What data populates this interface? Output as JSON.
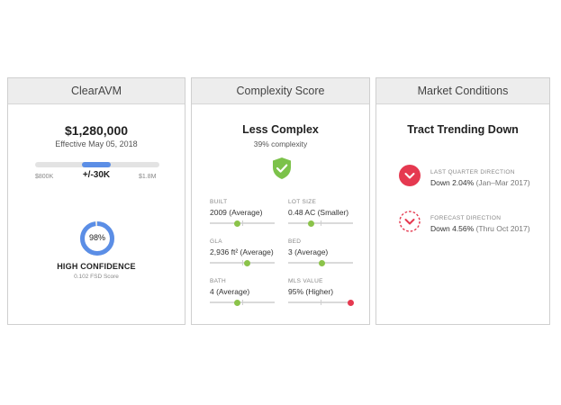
{
  "clearavm": {
    "title": "ClearAVM",
    "price": "$1,280,000",
    "effective": "Effective May 05, 2018",
    "range_low": "$800K",
    "range_high": "$1.8M",
    "range_pm": "+/-30K",
    "confidence_pct": "98%",
    "confidence_value": 0.98,
    "confidence_label": "HIGH CONFIDENCE",
    "fsd_score": "0.102 FSD Score",
    "accent_color": "#5b8ee6"
  },
  "complexity": {
    "title": "Complexity Score",
    "heading": "Less Complex",
    "subheading": "39% complexity",
    "icon": "shield-check-icon",
    "metrics": [
      {
        "label": "BUILT",
        "value": "2009 (Average)",
        "level": 0.43,
        "color": "#8bc34a"
      },
      {
        "label": "LOT SIZE",
        "value": "0.48 AC (Smaller)",
        "level": 0.36,
        "color": "#8bc34a"
      },
      {
        "label": "GLA",
        "value": "2,936 ft² (Average)",
        "level": 0.57,
        "color": "#8bc34a"
      },
      {
        "label": "BED",
        "value": "3 (Average)",
        "level": 0.52,
        "color": "#8bc34a"
      },
      {
        "label": "BATH",
        "value": "4 (Average)",
        "level": 0.42,
        "color": "#8bc34a"
      },
      {
        "label": "MLS VALUE",
        "value": "95% (Higher)",
        "level": 0.97,
        "color": "#e53950"
      }
    ]
  },
  "market": {
    "title": "Market Conditions",
    "heading": "Tract Trending Down",
    "last_quarter": {
      "label": "LAST QUARTER DIRECTION",
      "value": "Down 2.04%",
      "period": "(Jan–Mar 2017)",
      "icon": "chevron-down-circle-icon"
    },
    "forecast": {
      "label": "FORECAST DIRECTION",
      "value": "Down 4.56%",
      "period": "(Thru Oct 2017)",
      "icon": "chevron-down-dashed-circle-icon"
    },
    "down_color": "#e53950"
  }
}
